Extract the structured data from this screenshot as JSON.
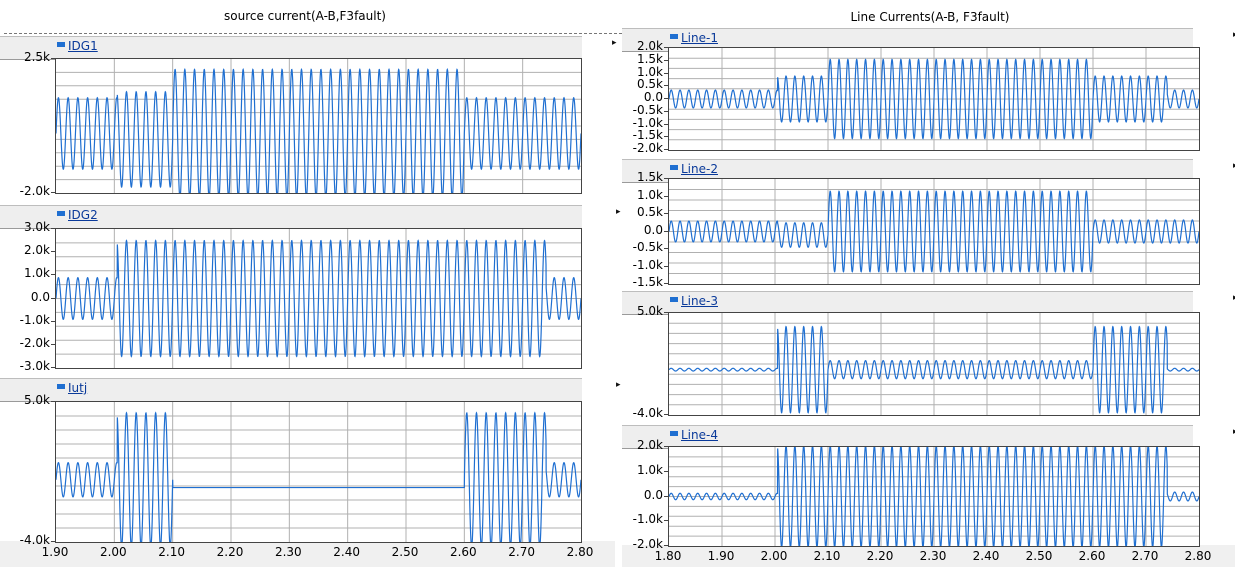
{
  "colors": {
    "trace": "#1f6fd1",
    "grid": "#b0b0b0",
    "legend_bg": "#eeeeee"
  },
  "left_panel": {
    "title": "source current(A-B,F3fault)",
    "x_ticks": [
      "1.90",
      "2.00",
      "2.10",
      "2.20",
      "2.30",
      "2.40",
      "2.50",
      "2.60",
      "2.70",
      "2.80"
    ]
  },
  "right_panel": {
    "title": "Line Currents(A-B, F3fault)",
    "x_ticks": [
      "1.80",
      "1.90",
      "2.00",
      "2.10",
      "2.20",
      "2.30",
      "2.40",
      "2.50",
      "2.60",
      "2.70",
      "2.80"
    ]
  },
  "chart_data": [
    {
      "type": "line",
      "id": "IDG1",
      "series": [
        {
          "name": "IDG1"
        }
      ],
      "xlim": [
        1.9,
        2.8
      ],
      "ylim": [
        -2000,
        2500
      ],
      "y_ticks": [
        {
          "v": 2500,
          "t": "2.5k"
        },
        {
          "v": -2000,
          "t": "-2.0k"
        }
      ],
      "frequency_hz": 60,
      "segments": [
        {
          "x": [
            1.9,
            2.005
          ],
          "amp": 1200,
          "offset": 0
        },
        {
          "x": [
            2.005,
            2.1
          ],
          "amp": 1600,
          "offset": -200
        },
        {
          "x": [
            2.1,
            2.6
          ],
          "amp": 2150,
          "offset": 0
        },
        {
          "x": [
            2.6,
            2.8
          ],
          "amp": 1200,
          "offset": 0
        }
      ]
    },
    {
      "type": "line",
      "id": "IDG2",
      "series": [
        {
          "name": "IDG2"
        }
      ],
      "xlim": [
        1.9,
        2.8
      ],
      "ylim": [
        -3000,
        3000
      ],
      "y_ticks": [
        {
          "v": 3000,
          "t": "3.0k"
        },
        {
          "v": 2000,
          "t": "2.0k"
        },
        {
          "v": 1000,
          "t": "1.0k"
        },
        {
          "v": 0,
          "t": "0.0"
        },
        {
          "v": -1000,
          "t": "-1.0k"
        },
        {
          "v": -2000,
          "t": "-2.0k"
        },
        {
          "v": -3000,
          "t": "-3.0k"
        }
      ],
      "frequency_hz": 60,
      "segments": [
        {
          "x": [
            1.9,
            2.005
          ],
          "amp": 900,
          "offset": 0
        },
        {
          "x": [
            2.005,
            2.74
          ],
          "amp": 2500,
          "offset": 0
        },
        {
          "x": [
            2.74,
            2.8
          ],
          "amp": 900,
          "offset": 0
        }
      ]
    },
    {
      "type": "line",
      "id": "Iutj",
      "series": [
        {
          "name": "Iutj"
        }
      ],
      "xlim": [
        1.9,
        2.8
      ],
      "ylim": [
        -4000,
        5000
      ],
      "y_ticks": [
        {
          "v": 5000,
          "t": "5.0k"
        },
        {
          "v": -4000,
          "t": "-4.0k"
        }
      ],
      "frequency_hz": 60,
      "segments": [
        {
          "x": [
            1.9,
            2.005
          ],
          "amp": 1100,
          "offset": 0
        },
        {
          "x": [
            2.005,
            2.1
          ],
          "amp": 4300,
          "offset": 0
        },
        {
          "x": [
            2.1,
            2.6
          ],
          "amp": 0,
          "offset": -500
        },
        {
          "x": [
            2.6,
            2.74
          ],
          "amp": 4300,
          "offset": 0
        },
        {
          "x": [
            2.74,
            2.8
          ],
          "amp": 1100,
          "offset": 0
        }
      ]
    },
    {
      "type": "line",
      "id": "Line-1",
      "series": [
        {
          "name": "Line-1"
        }
      ],
      "xlim": [
        1.8,
        2.8
      ],
      "ylim": [
        -2000,
        2000
      ],
      "y_ticks": [
        {
          "v": 2000,
          "t": "2.0k"
        },
        {
          "v": 1500,
          "t": "1.5k"
        },
        {
          "v": 1000,
          "t": "1.0k"
        },
        {
          "v": 500,
          "t": "0.5k"
        },
        {
          "v": 0,
          "t": "0.0"
        },
        {
          "v": -500,
          "t": "-0.5k"
        },
        {
          "v": -1000,
          "t": "-1.0k"
        },
        {
          "v": -1500,
          "t": "-1.5k"
        },
        {
          "v": -2000,
          "t": "-2.0k"
        }
      ],
      "frequency_hz": 60,
      "segments": [
        {
          "x": [
            1.8,
            2.005
          ],
          "amp": 350,
          "offset": 0
        },
        {
          "x": [
            2.005,
            2.1
          ],
          "amp": 900,
          "offset": 0
        },
        {
          "x": [
            2.1,
            2.6
          ],
          "amp": 1550,
          "offset": 0
        },
        {
          "x": [
            2.6,
            2.74
          ],
          "amp": 900,
          "offset": 0
        },
        {
          "x": [
            2.74,
            2.8
          ],
          "amp": 350,
          "offset": 0
        }
      ]
    },
    {
      "type": "line",
      "id": "Line-2",
      "series": [
        {
          "name": "Line-2"
        }
      ],
      "xlim": [
        1.8,
        2.8
      ],
      "ylim": [
        -1500,
        1500
      ],
      "y_ticks": [
        {
          "v": 1500,
          "t": "1.5k"
        },
        {
          "v": 1000,
          "t": "1.0k"
        },
        {
          "v": 500,
          "t": "0.5k"
        },
        {
          "v": 0,
          "t": "0.0"
        },
        {
          "v": -500,
          "t": "-0.5k"
        },
        {
          "v": -1000,
          "t": "-1.0k"
        },
        {
          "v": -1500,
          "t": "-1.5k"
        }
      ],
      "frequency_hz": 60,
      "segments": [
        {
          "x": [
            1.8,
            2.005
          ],
          "amp": 300,
          "offset": 0
        },
        {
          "x": [
            2.005,
            2.1
          ],
          "amp": 350,
          "offset": -100
        },
        {
          "x": [
            2.1,
            2.6
          ],
          "amp": 1150,
          "offset": 0
        },
        {
          "x": [
            2.6,
            2.8
          ],
          "amp": 330,
          "offset": 0
        }
      ]
    },
    {
      "type": "line",
      "id": "Line-3",
      "series": [
        {
          "name": "Line-3"
        }
      ],
      "xlim": [
        1.8,
        2.8
      ],
      "ylim": [
        -4000,
        5000
      ],
      "y_ticks": [
        {
          "v": 5000,
          "t": "5.0k"
        },
        {
          "v": -4000,
          "t": "-4.0k"
        }
      ],
      "frequency_hz": 60,
      "segments": [
        {
          "x": [
            1.8,
            2.005
          ],
          "amp": 120,
          "offset": 0
        },
        {
          "x": [
            2.005,
            2.1
          ],
          "amp": 3800,
          "offset": 0
        },
        {
          "x": [
            2.1,
            2.6
          ],
          "amp": 800,
          "offset": 0
        },
        {
          "x": [
            2.6,
            2.74
          ],
          "amp": 3800,
          "offset": 0
        },
        {
          "x": [
            2.74,
            2.8
          ],
          "amp": 120,
          "offset": 0
        }
      ]
    },
    {
      "type": "line",
      "id": "Line-4",
      "series": [
        {
          "name": "Line-4"
        }
      ],
      "xlim": [
        1.8,
        2.8
      ],
      "ylim": [
        -2000,
        2000
      ],
      "y_ticks": [
        {
          "v": 2000,
          "t": "2.0k"
        },
        {
          "v": 1000,
          "t": "1.0k"
        },
        {
          "v": 0,
          "t": "0.0"
        },
        {
          "v": -1000,
          "t": "-1.0k"
        },
        {
          "v": -2000,
          "t": "-2.0k"
        }
      ],
      "frequency_hz": 60,
      "segments": [
        {
          "x": [
            1.8,
            2.005
          ],
          "amp": 130,
          "offset": 0
        },
        {
          "x": [
            2.005,
            2.74
          ],
          "amp": 2050,
          "offset": 0
        },
        {
          "x": [
            2.74,
            2.8
          ],
          "amp": 180,
          "offset": 0
        }
      ]
    }
  ]
}
